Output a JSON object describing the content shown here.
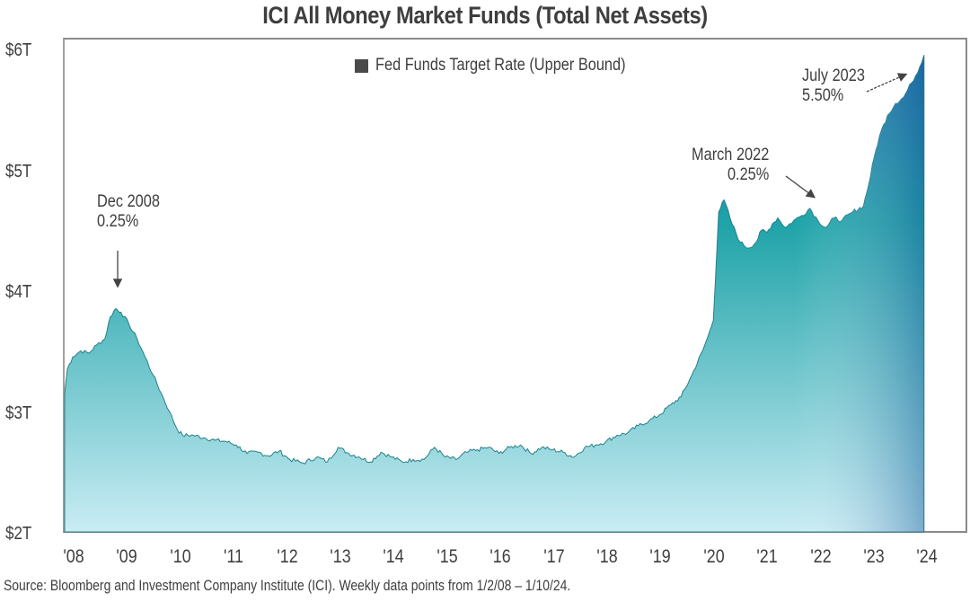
{
  "chart_data": {
    "type": "area",
    "title": "ICI All Money Market Funds (Total Net Assets)",
    "xlabel": "",
    "ylabel": "",
    "ylim": [
      2,
      6
    ],
    "xlim": [
      2008,
      2024.05
    ],
    "y_ticks": [
      "$6T",
      "$5T",
      "$4T",
      "$3T",
      "$2T"
    ],
    "y_tick_values": [
      6,
      5,
      4,
      3,
      2
    ],
    "x_ticks": [
      "'08",
      "'09",
      "'10",
      "'11",
      "'12",
      "'13",
      "'14",
      "'15",
      "'16",
      "'17",
      "'18",
      "'19",
      "'20",
      "'21",
      "'22",
      "'23",
      "'24"
    ],
    "grid": false,
    "legend": {
      "position": "top-center",
      "entries": [
        "Fed Funds Target Rate (Upper Bound)"
      ]
    },
    "series": [
      {
        "name": "ICI All Money Market Funds Total Net Assets ($T)",
        "x": [
          2008.0,
          2008.05,
          2008.15,
          2008.3,
          2008.45,
          2008.6,
          2008.75,
          2008.85,
          2008.95,
          2009.05,
          2009.2,
          2009.35,
          2009.5,
          2009.65,
          2009.8,
          2009.95,
          2010.1,
          2010.2,
          2010.4,
          2010.6,
          2010.8,
          2011.0,
          2011.2,
          2011.4,
          2011.6,
          2011.8,
          2012.0,
          2012.2,
          2012.45,
          2012.7,
          2012.9,
          2013.1,
          2013.3,
          2013.5,
          2013.7,
          2013.9,
          2014.1,
          2014.3,
          2014.5,
          2014.7,
          2014.9,
          2015.1,
          2015.3,
          2015.5,
          2015.7,
          2015.9,
          2016.1,
          2016.3,
          2016.5,
          2016.7,
          2016.9,
          2017.1,
          2017.3,
          2017.5,
          2017.7,
          2017.9,
          2018.1,
          2018.3,
          2018.5,
          2018.7,
          2018.9,
          2019.1,
          2019.3,
          2019.5,
          2019.7,
          2019.9,
          2020.0,
          2020.1,
          2020.2,
          2020.3,
          2020.45,
          2020.6,
          2020.75,
          2020.9,
          2021.0,
          2021.1,
          2021.2,
          2021.3,
          2021.45,
          2021.6,
          2021.75,
          2021.9,
          2022.05,
          2022.2,
          2022.35,
          2022.5,
          2022.7,
          2022.9,
          2023.0,
          2023.1,
          2023.2,
          2023.35,
          2023.5,
          2023.65,
          2023.8,
          2023.95,
          2024.03
        ],
        "values": [
          3.15,
          3.35,
          3.45,
          3.5,
          3.48,
          3.55,
          3.6,
          3.78,
          3.85,
          3.82,
          3.72,
          3.6,
          3.45,
          3.3,
          3.15,
          3.0,
          2.85,
          2.8,
          2.8,
          2.78,
          2.76,
          2.75,
          2.72,
          2.65,
          2.66,
          2.63,
          2.67,
          2.6,
          2.57,
          2.62,
          2.58,
          2.7,
          2.65,
          2.62,
          2.58,
          2.66,
          2.62,
          2.58,
          2.6,
          2.6,
          2.7,
          2.62,
          2.6,
          2.66,
          2.68,
          2.7,
          2.65,
          2.7,
          2.72,
          2.65,
          2.7,
          2.68,
          2.66,
          2.62,
          2.7,
          2.72,
          2.75,
          2.8,
          2.82,
          2.88,
          2.92,
          2.97,
          3.05,
          3.12,
          3.3,
          3.5,
          3.62,
          3.75,
          4.65,
          4.75,
          4.55,
          4.4,
          4.35,
          4.4,
          4.5,
          4.48,
          4.55,
          4.6,
          4.52,
          4.58,
          4.62,
          4.68,
          4.58,
          4.52,
          4.6,
          4.58,
          4.65,
          4.7,
          4.88,
          5.1,
          5.28,
          5.45,
          5.55,
          5.6,
          5.72,
          5.85,
          5.95
        ]
      }
    ],
    "annotations": [
      {
        "text": "Dec 2008",
        "subtext": "0.25%",
        "x": 2008.95,
        "y": 3.85,
        "arrow": "down"
      },
      {
        "text": "March 2022",
        "subtext": "0.25%",
        "x": 2022.2,
        "y": 4.7,
        "arrow": "down-right"
      },
      {
        "text": "July 2023",
        "subtext": "5.50%",
        "x": 2023.55,
        "y": 5.85,
        "arrow": "up-right"
      }
    ],
    "colors": {
      "area_top": "#1a6fa8",
      "area_mid": "#1ea3a8",
      "area_bottom": "#c9ecf4",
      "outline": "#2a7e86"
    }
  },
  "title": "ICI All Money Market Funds (Total Net Assets)",
  "legend_label": "Fed Funds Target Rate (Upper Bound)",
  "annotations": {
    "dec2008": {
      "line1": "Dec 2008",
      "line2": "0.25%"
    },
    "mar2022": {
      "line1": "March 2022",
      "line2": "0.25%"
    },
    "jul2023": {
      "line1": "July 2023",
      "line2": "5.50%"
    }
  },
  "source": "Source: Bloomberg and Investment Company Institute (ICI). Weekly data points from 1/2/08 – 1/10/24."
}
